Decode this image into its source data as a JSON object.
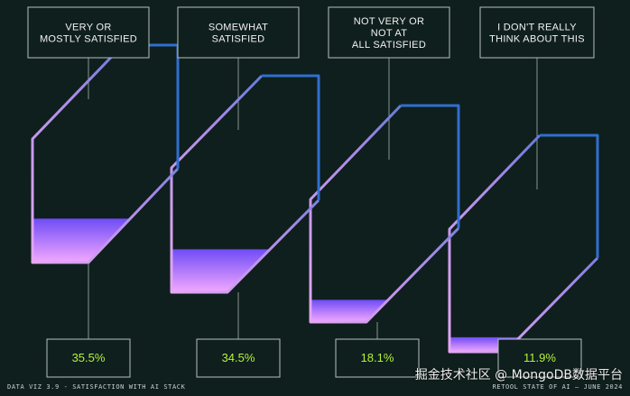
{
  "chart_data": {
    "type": "bar",
    "categories": [
      "VERY OR MOSTLY SATISFIED",
      "SOMEWHAT SATISFIED",
      "NOT VERY OR NOT AT ALL SATISFIED",
      "I DON'T REALLY THINK ABOUT THIS"
    ],
    "category_lines": [
      [
        "VERY OR",
        "MOSTLY SATISFIED"
      ],
      [
        "SOMEWHAT",
        "SATISFIED"
      ],
      [
        "NOT VERY OR",
        "NOT AT",
        "ALL SATISFIED"
      ],
      [
        "I DON'T REALLY",
        "THINK ABOUT THIS"
      ]
    ],
    "values": [
      35.5,
      34.5,
      18.1,
      11.9
    ],
    "value_labels": [
      "35.5%",
      "34.5%",
      "18.1%",
      "11.9%"
    ],
    "ylim": [
      0,
      100
    ]
  },
  "footer": {
    "left": "DATA VIZ 3.9 - SATISFACTION WITH AI STACK",
    "right": "RETOOL STATE OF AI — JUNE 2024"
  },
  "watermark": "掘金技术社区 @ MongoDB数据平台",
  "colors": {
    "background": "#0f1f1d",
    "line": "#8a9491",
    "box_stroke": "#b7c1be",
    "label_text": "#f2f2f2",
    "value_text": "#b6f23a",
    "blue": "#2f6fd0",
    "pink": "#e4a8f2",
    "fill_top": "#6f4cf6",
    "fill_bottom": "#f3a8ff"
  }
}
